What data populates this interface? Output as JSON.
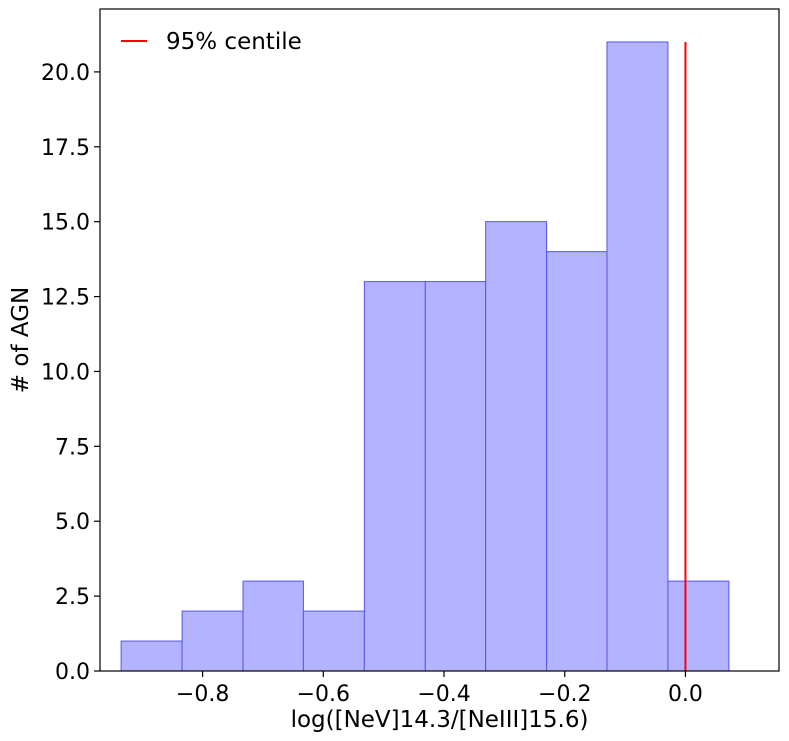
{
  "chart_data": {
    "type": "bar",
    "title": "",
    "xlabel": "log([NeV]14.3/[NeIII]15.6)",
    "ylabel": "# of AGN",
    "xlim": [
      -0.97,
      0.155
    ],
    "ylim": [
      0,
      22.1
    ],
    "xticks": [
      -0.8,
      -0.6,
      -0.4,
      -0.2,
      0.0
    ],
    "xtick_labels": [
      "−0.8",
      "−0.6",
      "−0.4",
      "−0.2",
      "0.0"
    ],
    "yticks": [
      0,
      2.5,
      5,
      7.5,
      10,
      12.5,
      15,
      17.5,
      20
    ],
    "ytick_labels": [
      "0.0",
      "2.5",
      "5.0",
      "7.5",
      "10.0",
      "12.5",
      "15.0",
      "17.5",
      "20.0"
    ],
    "bins": [
      {
        "x0": -0.935,
        "x1": -0.834,
        "count": 1
      },
      {
        "x0": -0.834,
        "x1": -0.733,
        "count": 2
      },
      {
        "x0": -0.733,
        "x1": -0.633,
        "count": 3
      },
      {
        "x0": -0.633,
        "x1": -0.532,
        "count": 2
      },
      {
        "x0": -0.532,
        "x1": -0.431,
        "count": 13
      },
      {
        "x0": -0.431,
        "x1": -0.331,
        "count": 13
      },
      {
        "x0": -0.331,
        "x1": -0.23,
        "count": 15
      },
      {
        "x0": -0.23,
        "x1": -0.13,
        "count": 14
      },
      {
        "x0": -0.13,
        "x1": -0.029,
        "count": 21
      },
      {
        "x0": -0.029,
        "x1": 0.072,
        "count": 3
      }
    ],
    "bar_color": "#b3b3ff",
    "bar_edge_color": "#5555ee",
    "vline": {
      "x": 0.0,
      "y0": 0,
      "y1": 21,
      "color": "#ff0000",
      "label": "95% centile"
    },
    "legend_placement": "top-left",
    "grid": false
  }
}
